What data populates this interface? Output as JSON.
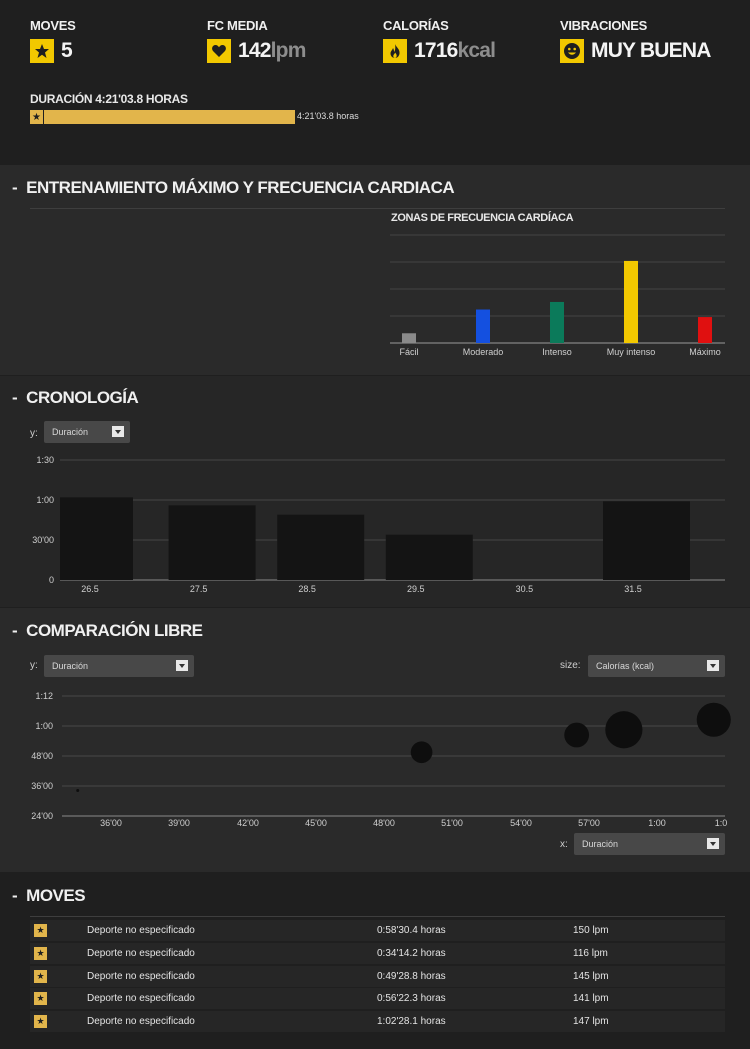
{
  "summary": {
    "moves": {
      "label": "MOVES",
      "value": "5",
      "icon": "star-icon"
    },
    "hr": {
      "label": "FC MEDIA",
      "value": "142",
      "unit": "lpm",
      "icon": "heart-icon"
    },
    "calories": {
      "label": "CALORÍAS",
      "value": "1716",
      "unit": "kcal",
      "icon": "flame-icon"
    },
    "vibes": {
      "label": "VIBRACIONES",
      "value": "MUY BUENA",
      "icon": "smiley-icon"
    },
    "duration_label": "DURACIÓN 4:21'03.8 HORAS",
    "duration_text": "4:21'03.8 horas",
    "duration_progress": 1.0
  },
  "colors": {
    "accent": "#e2b54b",
    "icon_bg": "#f2c800"
  },
  "training": {
    "title": "ENTRENAMIENTO MÁXIMO Y FRECUENCIA CARDIACA",
    "zones_title": "ZONAS DE FRECUENCIA CARDÍACA"
  },
  "timeline": {
    "title": "CRONOLOGÍA",
    "y_label": "y:",
    "y_select": "Duración"
  },
  "free": {
    "title": "COMPARACIÓN LIBRE",
    "y_label": "y:",
    "y_select": "Duración",
    "size_label": "size:",
    "size_select": "Calorías (kcal)",
    "x_label": "x:",
    "x_select": "Duración"
  },
  "moves_section": {
    "title": "MOVES",
    "rows": [
      {
        "sport": "Deporte no especificado",
        "duration": "0:58'30.4 horas",
        "hr": "150 lpm"
      },
      {
        "sport": "Deporte no especificado",
        "duration": "0:34'14.2 horas",
        "hr": "116 lpm"
      },
      {
        "sport": "Deporte no especificado",
        "duration": "0:49'28.8 horas",
        "hr": "145 lpm"
      },
      {
        "sport": "Deporte no especificado",
        "duration": "0:56'22.3 horas",
        "hr": "141 lpm"
      },
      {
        "sport": "Deporte no especificado",
        "duration": "1:02'28.1 horas",
        "hr": "147 lpm"
      }
    ]
  },
  "chart_data": [
    {
      "type": "bar",
      "title": "ZONAS DE FRECUENCIA CARDÍACA",
      "categories": [
        "Fácil",
        "Moderado",
        "Intenso",
        "Muy intenso",
        "Máximo"
      ],
      "values": [
        9,
        31,
        38,
        76,
        24
      ],
      "colors": [
        "#8a8a8a",
        "#1450e0",
        "#0b7a5a",
        "#f2c800",
        "#e01010"
      ],
      "ylim": [
        0,
        100
      ],
      "grid": true
    },
    {
      "type": "bar",
      "title": "",
      "categories": [
        "26.5",
        "27.5",
        "28.5",
        "29.5",
        "30.5",
        "31.5"
      ],
      "values": [
        62,
        56,
        49,
        34,
        0,
        59
      ],
      "y_ticks": [
        "0",
        "30'00",
        "1:00",
        "1:30"
      ],
      "ylim": [
        0,
        90
      ],
      "grid": true
    },
    {
      "type": "scatter",
      "title": "",
      "x_ticks": [
        "36'00",
        "39'00",
        "42'00",
        "45'00",
        "48'00",
        "51'00",
        "54'00",
        "57'00",
        "1:00",
        "1:0"
      ],
      "y_ticks": [
        "24'00",
        "36'00",
        "48'00",
        "1:00",
        "1:12"
      ],
      "xlim": [
        33.5,
        63
      ],
      "ylim": [
        24,
        72
      ],
      "points": [
        {
          "x": 34.2,
          "y": 34.2,
          "size": 0.5
        },
        {
          "x": 49.5,
          "y": 49.5,
          "size": 7
        },
        {
          "x": 56.4,
          "y": 56.4,
          "size": 8
        },
        {
          "x": 58.5,
          "y": 58.5,
          "size": 12
        },
        {
          "x": 62.5,
          "y": 62.5,
          "size": 11
        }
      ],
      "grid": true
    }
  ]
}
